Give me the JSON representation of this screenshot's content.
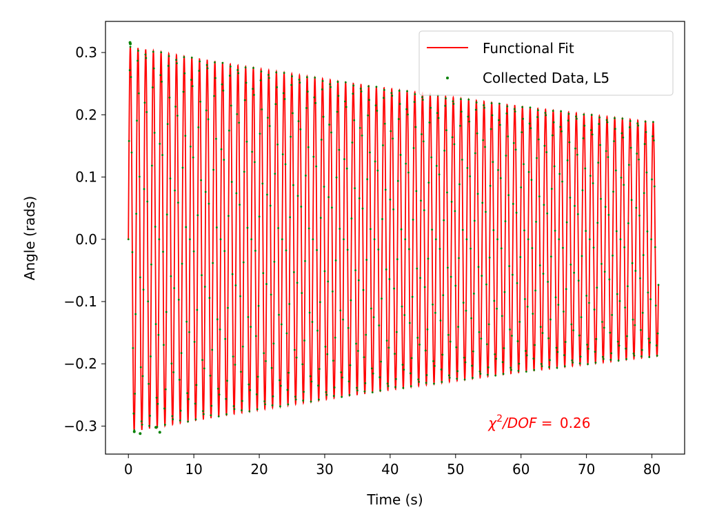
{
  "chart_data": {
    "type": "line",
    "xlabel": "Time (s)",
    "ylabel": "Angle (rads)",
    "xlim": [
      -3.5,
      85
    ],
    "ylim": [
      -0.345,
      0.35
    ],
    "xticks": [
      0,
      10,
      20,
      30,
      40,
      50,
      60,
      70,
      80
    ],
    "xtick_labels": [
      "0",
      "10",
      "20",
      "30",
      "40",
      "50",
      "60",
      "70",
      "80"
    ],
    "yticks": [
      -0.3,
      -0.2,
      -0.1,
      0.0,
      0.1,
      0.2,
      0.3
    ],
    "ytick_labels": [
      "−0.3",
      "−0.2",
      "−0.1",
      "0.0",
      "0.1",
      "0.2",
      "0.3"
    ],
    "grid": false,
    "legend_position": "top-right",
    "series": [
      {
        "name": "Functional Fit",
        "kind": "line",
        "color": "#ff0000",
        "model": {
          "amplitude": 0.31,
          "damping_per_s": 0.0062,
          "period_s": 1.175,
          "phase": 0,
          "t_start": 0.0,
          "t_end": 81.0
        }
      },
      {
        "name": "Collected Data, L5",
        "kind": "scatter",
        "color": "#008000",
        "sample_interval_s": 0.1,
        "t_start": 0.0,
        "t_end": 81.0
      }
    ],
    "annotation": {
      "prefix": "χ",
      "superscript": "2",
      "middle": "/DOF = ",
      "value": "0.26",
      "x": 55,
      "y": -0.295,
      "color": "#ff0000"
    }
  }
}
